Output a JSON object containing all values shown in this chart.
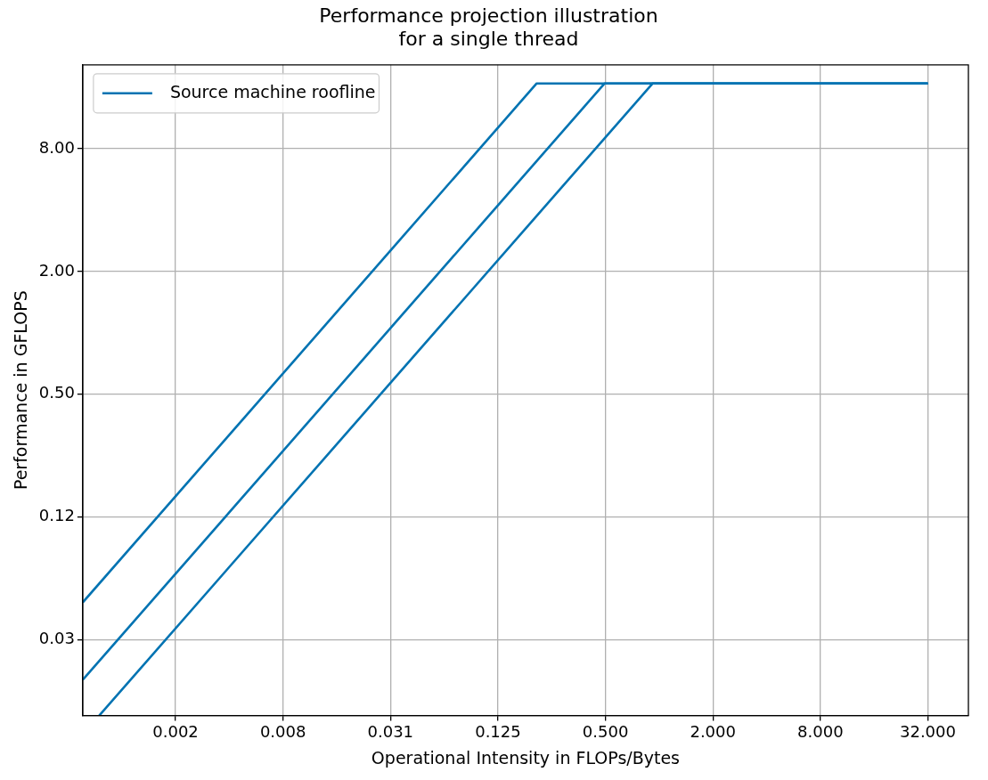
{
  "chart_data": {
    "type": "line",
    "title": "Performance projection illustration\nfor a single thread",
    "xlabel": "Operational Intensity in FLOPs/Bytes",
    "ylabel": "Performance in GFLOPS",
    "log": "xy",
    "grid": true,
    "legend": "top left",
    "marker": "none",
    "line_style": "solid",
    "xlim": [
      0.00059,
      54
    ],
    "ylim": [
      0.0133,
      20.6
    ],
    "xticks": [
      {
        "value": 0.001953125,
        "label": "0.002"
      },
      {
        "value": 0.0078125,
        "label": "0.008"
      },
      {
        "value": 0.03125,
        "label": "0.031"
      },
      {
        "value": 0.125,
        "label": "0.125"
      },
      {
        "value": 0.5,
        "label": "0.500"
      },
      {
        "value": 2,
        "label": "2.000"
      },
      {
        "value": 8,
        "label": "8.000"
      },
      {
        "value": 32,
        "label": "32.000"
      }
    ],
    "yticks": [
      {
        "value": 0.03125,
        "label": "0.03"
      },
      {
        "value": 0.125,
        "label": "0.12"
      },
      {
        "value": 0.5,
        "label": "0.50"
      },
      {
        "value": 2,
        "label": "2.00"
      },
      {
        "value": 8,
        "label": "8.00"
      }
    ],
    "series": [
      {
        "name": "Source machine roofline",
        "color": "#0173b2",
        "x": [
          0.00059,
          0.206,
          32
        ],
        "values": [
          0.0477,
          16.7,
          16.7
        ]
      },
      {
        "color": "#0173b2",
        "x": [
          0.00059,
          0.495,
          32
        ],
        "values": [
          0.0199,
          16.7,
          16.7
        ]
      },
      {
        "color": "#0173b2",
        "x": [
          0.00073,
          0.92,
          32
        ],
        "values": [
          0.0133,
          16.7,
          16.7
        ]
      }
    ]
  }
}
